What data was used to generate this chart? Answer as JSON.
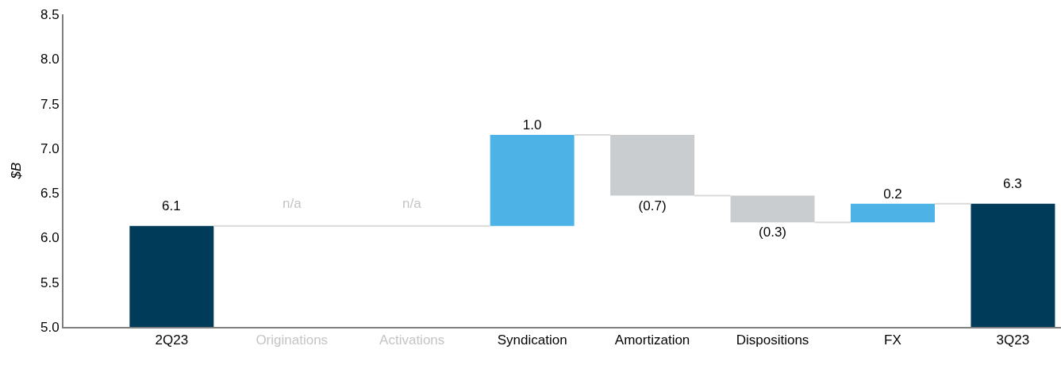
{
  "chart_data": {
    "type": "bar",
    "ylabel": "$B",
    "categories": [
      "2Q23",
      "Originations",
      "Activations",
      "Syndication",
      "Amortization",
      "Dispositions",
      "FX",
      "3Q23"
    ],
    "base": [
      5.0,
      null,
      null,
      6.13,
      7.15,
      6.47,
      6.17,
      5.0
    ],
    "values": [
      1.13,
      null,
      null,
      1.02,
      -0.68,
      -0.3,
      0.21,
      1.38
    ],
    "value_labels": [
      null,
      "n/a",
      "n/a",
      "1.0",
      "(0.7)",
      "(0.3)",
      "0.2",
      null
    ],
    "colors": [
      "#003b5a",
      null,
      null,
      "#4db3e6",
      "#cacdd0",
      "#cacdd0",
      "#4db3e6",
      "#003b5a"
    ],
    "annotations": [
      {
        "text": "6.1",
        "x": "2Q23",
        "y": 6.13
      },
      {
        "text": "6.3",
        "x": "3Q23",
        "y": 6.38
      }
    ],
    "ylim": [
      5.0,
      8.5
    ],
    "yticks": [
      {
        "value": 5.0,
        "label": "5.0"
      },
      5.5,
      {
        "value": 6.0,
        "label": "6.0"
      },
      6.5,
      {
        "value": 7.0,
        "label": "7.0"
      },
      7.5,
      {
        "value": 8.0,
        "label": "8.0"
      },
      8.5
    ],
    "grid": false
  }
}
